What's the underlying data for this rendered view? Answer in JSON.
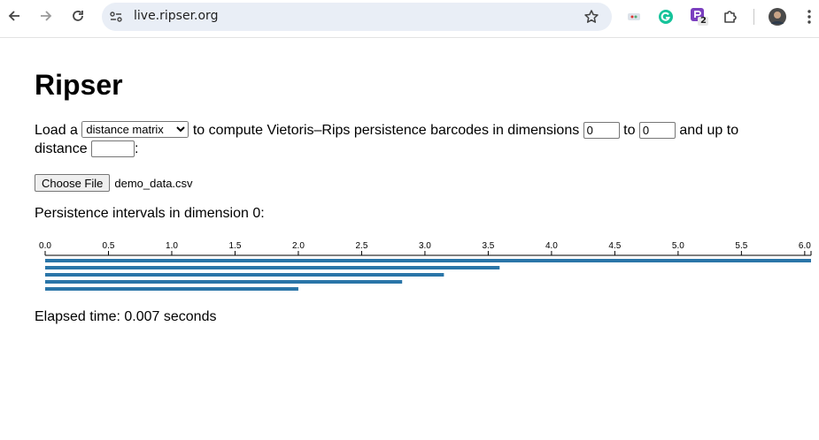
{
  "browser": {
    "url": "live.ripser.org",
    "extension_badge": "2"
  },
  "page": {
    "title": "Ripser",
    "intro": {
      "load_a": "Load a",
      "input_type_options": [
        "distance matrix"
      ],
      "input_type_selected": "distance matrix",
      "compute_text": "to compute Vietoris–Rips persistence barcodes in dimensions",
      "dim_min": "0",
      "to_text": "to",
      "dim_max": "0",
      "up_to_text": "and up to",
      "distance_text": "distance",
      "threshold": "",
      "colon": ":"
    },
    "file": {
      "button_label": "Choose File",
      "filename": "demo_data.csv"
    },
    "dimension_title": "Persistence intervals in dimension 0:",
    "elapsed": "Elapsed time: 0.007 seconds"
  },
  "chart_data": {
    "type": "bar",
    "orientation": "horizontal barcode",
    "xlim": [
      0,
      6.05
    ],
    "ticks": [
      "0.0",
      "0.5",
      "1.0",
      "1.5",
      "2.0",
      "2.5",
      "3.0",
      "3.5",
      "4.0",
      "4.5",
      "5.0",
      "5.5",
      "6.0"
    ],
    "tick_values": [
      0,
      0.5,
      1.0,
      1.5,
      2.0,
      2.5,
      3.0,
      3.5,
      4.0,
      4.5,
      5.0,
      5.5,
      6.0
    ],
    "intervals": [
      {
        "birth": 0,
        "death": 6.05
      },
      {
        "birth": 0,
        "death": 3.59
      },
      {
        "birth": 0,
        "death": 3.15
      },
      {
        "birth": 0,
        "death": 2.82
      },
      {
        "birth": 0,
        "death": 2.0
      }
    ],
    "bar_color": "#2a75a8"
  }
}
